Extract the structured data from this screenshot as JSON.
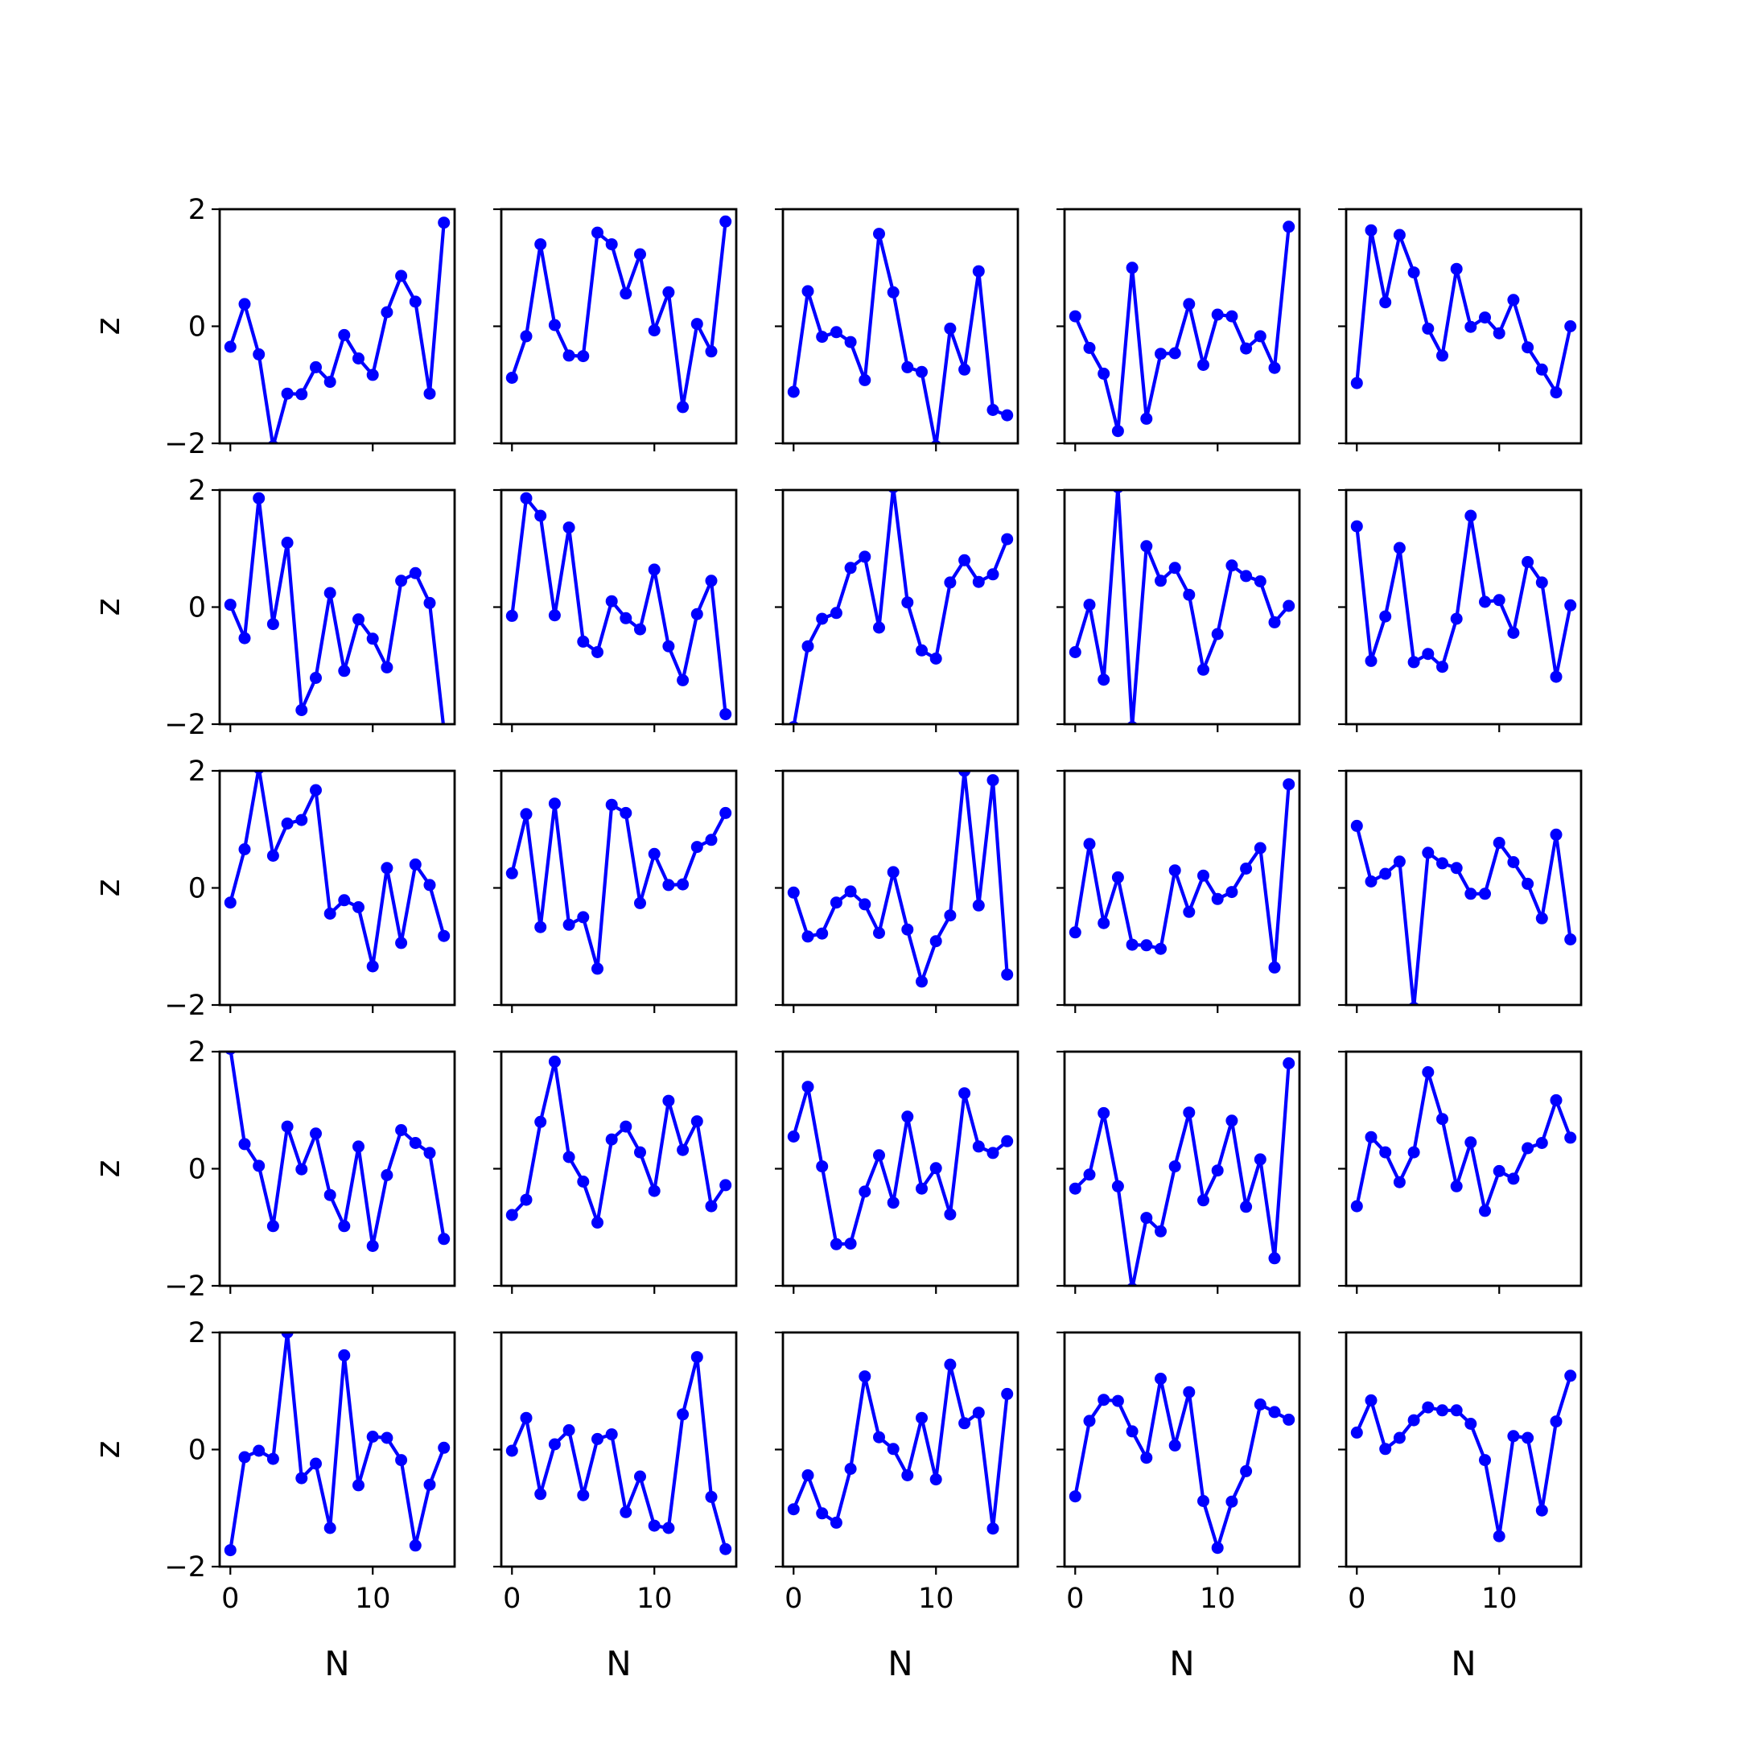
{
  "chart_data": {
    "type": "line",
    "layout": {
      "rows": 5,
      "cols": 5
    },
    "xlabel": "N",
    "ylabel": "z",
    "xlim": [
      -0.75,
      15.75
    ],
    "ylim": [
      -2,
      2
    ],
    "xticks": [
      0,
      10
    ],
    "yticks": [
      -2,
      0,
      2
    ],
    "xtick_labels": [
      "0",
      "10"
    ],
    "ytick_labels": [
      "−2",
      "0",
      "2"
    ],
    "line_color": "#0000ff",
    "marker": "circle",
    "grid": false,
    "x": [
      0,
      1,
      2,
      3,
      4,
      5,
      6,
      7,
      8,
      9,
      10,
      11,
      12,
      13,
      14,
      15
    ],
    "panels": [
      [
        -0.35,
        0.38,
        -0.48,
        -2.05,
        -1.15,
        -1.16,
        -0.7,
        -0.95,
        -0.15,
        -0.55,
        -0.83,
        0.24,
        0.86,
        0.42,
        -1.15,
        1.77
      ],
      [
        -0.88,
        -0.17,
        1.4,
        0.02,
        -0.5,
        -0.51,
        1.6,
        1.4,
        0.56,
        1.23,
        -0.07,
        0.58,
        -1.38,
        0.04,
        -0.43,
        1.79
      ],
      [
        -1.12,
        0.6,
        -0.18,
        -0.1,
        -0.27,
        -0.92,
        1.58,
        0.58,
        -0.7,
        -0.78,
        -2.05,
        -0.04,
        -0.74,
        0.94,
        -1.43,
        -1.52
      ],
      [
        0.17,
        -0.37,
        -0.81,
        -1.79,
        1.0,
        -1.58,
        -0.47,
        -0.46,
        0.38,
        -0.66,
        0.2,
        0.17,
        -0.38,
        -0.17,
        -0.71,
        1.7
      ],
      [
        -0.97,
        1.64,
        0.41,
        1.56,
        0.92,
        -0.04,
        -0.5,
        0.98,
        -0.01,
        0.15,
        -0.12,
        0.45,
        -0.36,
        -0.74,
        -1.13,
        0.0
      ],
      [
        0.04,
        -0.53,
        1.86,
        -0.29,
        1.1,
        -1.76,
        -1.21,
        0.24,
        -1.09,
        -0.21,
        -0.54,
        -1.03,
        0.45,
        0.58,
        0.07,
        -2.1
      ],
      [
        -0.15,
        1.86,
        1.56,
        -0.14,
        1.36,
        -0.59,
        -0.77,
        0.1,
        -0.19,
        -0.38,
        0.64,
        -0.67,
        -1.25,
        -0.12,
        0.45,
        -1.83
      ],
      [
        -2.05,
        -0.67,
        -0.2,
        -0.1,
        0.67,
        0.86,
        -0.35,
        2.05,
        0.08,
        -0.74,
        -0.88,
        0.42,
        0.8,
        0.43,
        0.56,
        1.16
      ],
      [
        -0.77,
        0.04,
        -1.24,
        2.05,
        -2.05,
        1.04,
        0.45,
        0.67,
        0.21,
        -1.07,
        -0.46,
        0.71,
        0.53,
        0.44,
        -0.26,
        0.02
      ],
      [
        1.38,
        -0.92,
        -0.16,
        1.01,
        -0.94,
        -0.8,
        -1.02,
        -0.2,
        1.56,
        0.09,
        0.12,
        -0.44,
        0.77,
        0.42,
        -1.19,
        0.03
      ],
      [
        -0.25,
        0.66,
        2.05,
        0.55,
        1.1,
        1.16,
        1.67,
        -0.44,
        -0.21,
        -0.33,
        -1.34,
        0.34,
        -0.94,
        0.4,
        0.05,
        -0.82
      ],
      [
        0.25,
        1.26,
        -0.67,
        1.44,
        -0.63,
        -0.5,
        -1.38,
        1.42,
        1.28,
        -0.26,
        0.58,
        0.05,
        0.06,
        0.7,
        0.82,
        1.28
      ],
      [
        -0.08,
        -0.83,
        -0.78,
        -0.25,
        -0.06,
        -0.28,
        -0.77,
        0.27,
        -0.71,
        -1.6,
        -0.91,
        -0.47,
        2.0,
        -0.3,
        1.84,
        -1.48
      ],
      [
        -0.76,
        0.75,
        -0.6,
        0.18,
        -0.97,
        -0.98,
        -1.04,
        0.3,
        -0.41,
        0.21,
        -0.19,
        -0.07,
        0.33,
        0.68,
        -1.36,
        1.77
      ],
      [
        1.06,
        0.11,
        0.24,
        0.45,
        -2.05,
        0.6,
        0.42,
        0.34,
        -0.1,
        -0.1,
        0.77,
        0.44,
        0.07,
        -0.52,
        0.91,
        -0.88
      ],
      [
        2.05,
        0.42,
        0.05,
        -0.98,
        0.72,
        -0.01,
        0.6,
        -0.45,
        -0.98,
        0.38,
        -1.32,
        -0.11,
        0.66,
        0.44,
        0.27,
        -1.2
      ],
      [
        -0.79,
        -0.53,
        0.8,
        1.83,
        0.2,
        -0.22,
        -0.92,
        0.5,
        0.72,
        0.28,
        -0.38,
        1.16,
        0.32,
        0.81,
        -0.64,
        -0.28
      ],
      [
        0.55,
        1.4,
        0.04,
        -1.29,
        -1.28,
        -0.39,
        0.23,
        -0.58,
        0.89,
        -0.34,
        0.01,
        -0.78,
        1.29,
        0.38,
        0.27,
        0.47
      ],
      [
        -0.34,
        -0.1,
        0.95,
        -0.3,
        -2.05,
        -0.84,
        -1.07,
        0.04,
        0.96,
        -0.54,
        -0.03,
        0.82,
        -0.65,
        0.16,
        -1.53,
        1.8
      ],
      [
        -0.64,
        0.54,
        0.28,
        -0.23,
        0.28,
        1.65,
        0.85,
        -0.3,
        0.45,
        -0.72,
        -0.04,
        -0.17,
        0.35,
        0.44,
        1.17,
        0.53
      ],
      [
        -1.72,
        -0.13,
        -0.02,
        -0.16,
        2.0,
        -0.49,
        -0.24,
        -1.34,
        1.61,
        -0.61,
        0.22,
        0.2,
        -0.18,
        -1.64,
        -0.6,
        0.03
      ],
      [
        -0.02,
        0.54,
        -0.76,
        0.09,
        0.33,
        -0.78,
        0.18,
        0.26,
        -1.07,
        -0.46,
        -1.3,
        -1.34,
        0.6,
        1.58,
        -0.81,
        -1.7
      ],
      [
        -1.02,
        -0.44,
        -1.09,
        -1.25,
        -0.33,
        1.25,
        0.21,
        0.01,
        -0.44,
        0.54,
        -0.51,
        1.45,
        0.45,
        0.63,
        -1.35,
        0.95
      ],
      [
        -0.8,
        0.49,
        0.85,
        0.83,
        0.31,
        -0.14,
        1.21,
        0.07,
        0.98,
        -0.88,
        -1.68,
        -0.89,
        -0.37,
        0.77,
        0.64,
        0.51
      ],
      [
        0.29,
        0.84,
        0.01,
        0.2,
        0.5,
        0.72,
        0.67,
        0.67,
        0.44,
        -0.18,
        -1.48,
        0.23,
        0.2,
        -1.04,
        0.48,
        1.26
      ]
    ]
  }
}
